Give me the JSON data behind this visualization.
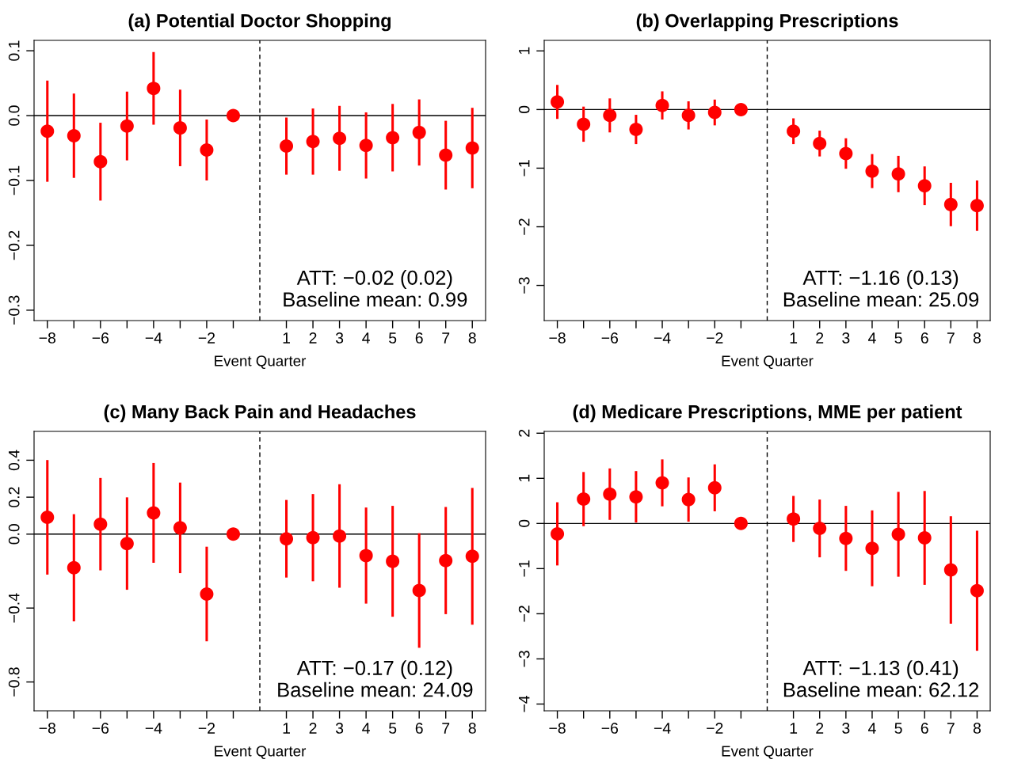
{
  "chart_data": [
    {
      "type": "scatter",
      "title": "(a) Potential Doctor Shopping",
      "xlabel": "Event Quarter",
      "x": [
        -8,
        -7,
        -6,
        -5,
        -4,
        -3,
        -2,
        -1,
        1,
        2,
        3,
        4,
        5,
        6,
        7,
        8
      ],
      "xlim": [
        -8.5,
        8.5
      ],
      "xticks": [
        {
          "value": -8,
          "label": "−8"
        },
        {
          "value": -7,
          "label": null
        },
        {
          "value": -6,
          "label": "−6"
        },
        {
          "value": -5,
          "label": null
        },
        {
          "value": -4,
          "label": "−4"
        },
        {
          "value": -3,
          "label": null
        },
        {
          "value": -2,
          "label": "−2"
        },
        {
          "value": -1,
          "label": null
        },
        1,
        2,
        3,
        4,
        5,
        6,
        7,
        8
      ],
      "series": [
        {
          "color": "#ff0000",
          "values": [
            -0.024,
            -0.031,
            -0.071,
            -0.016,
            0.042,
            -0.019,
            -0.053,
            0,
            -0.047,
            -0.04,
            -0.035,
            -0.046,
            -0.034,
            -0.026,
            -0.061,
            -0.05
          ],
          "errors": [
            0.078,
            0.065,
            0.06,
            0.053,
            0.056,
            0.059,
            0.047,
            null,
            0.044,
            0.051,
            0.05,
            0.051,
            0.052,
            0.051,
            0.053,
            0.062
          ]
        }
      ],
      "ylim": [
        -0.316,
        0.116
      ],
      "yticks": [
        {
          "value": -0.3,
          "label": "−0.3"
        },
        {
          "value": -0.2,
          "label": "−0.2"
        },
        {
          "value": -0.1,
          "label": "−0.1"
        },
        {
          "value": 0,
          "label": "0.0"
        },
        {
          "value": 0.1,
          "label": "0.1"
        }
      ],
      "ref_lines": [
        {
          "axis": "y",
          "value": 0,
          "color": "#000000",
          "line_style": "solid"
        },
        {
          "axis": "x",
          "value": 0,
          "color": "#000000",
          "line_style": "dashed"
        }
      ],
      "annotations": [
        "ATT: −0.02 (0.02)",
        "Baseline mean: 0.99"
      ],
      "marker": "circle",
      "grid": false,
      "legend": false
    },
    {
      "type": "scatter",
      "title": "(b) Overlapping Prescriptions",
      "xlabel": "Event Quarter",
      "x": [
        -8,
        -7,
        -6,
        -5,
        -4,
        -3,
        -2,
        -1,
        1,
        2,
        3,
        4,
        5,
        6,
        7,
        8
      ],
      "xlim": [
        -8.5,
        8.5
      ],
      "xticks": [
        {
          "value": -8,
          "label": "−8"
        },
        {
          "value": -7,
          "label": null
        },
        {
          "value": -6,
          "label": "−6"
        },
        {
          "value": -5,
          "label": null
        },
        {
          "value": -4,
          "label": "−4"
        },
        {
          "value": -3,
          "label": null
        },
        {
          "value": -2,
          "label": "−2"
        },
        {
          "value": -1,
          "label": null
        },
        1,
        2,
        3,
        4,
        5,
        6,
        7,
        8
      ],
      "series": [
        {
          "color": "#ff0000",
          "values": [
            0.13,
            -0.25,
            -0.1,
            -0.34,
            0.07,
            -0.1,
            -0.05,
            0,
            -0.37,
            -0.58,
            -0.75,
            -1.05,
            -1.1,
            -1.3,
            -1.62,
            -1.64
          ],
          "errors": [
            0.29,
            0.3,
            0.29,
            0.25,
            0.24,
            0.24,
            0.22,
            null,
            0.22,
            0.22,
            0.26,
            0.29,
            0.31,
            0.33,
            0.37,
            0.43
          ]
        }
      ],
      "ylim": [
        -3.6,
        1.18
      ],
      "yticks": [
        {
          "value": -3,
          "label": "−3"
        },
        {
          "value": -2,
          "label": "−2"
        },
        {
          "value": -1,
          "label": "−1"
        },
        {
          "value": 0,
          "label": "0"
        },
        {
          "value": 1,
          "label": "1"
        }
      ],
      "ref_lines": [
        {
          "axis": "y",
          "value": 0,
          "color": "#000000",
          "line_style": "solid"
        },
        {
          "axis": "x",
          "value": 0,
          "color": "#000000",
          "line_style": "dashed"
        }
      ],
      "annotations": [
        "ATT: −1.16 (0.13)",
        "Baseline mean: 25.09"
      ],
      "marker": "circle",
      "grid": false,
      "legend": false
    },
    {
      "type": "scatter",
      "title": "(c) Many Back Pain and Headaches",
      "xlabel": "Event Quarter",
      "x": [
        -8,
        -7,
        -6,
        -5,
        -4,
        -3,
        -2,
        -1,
        1,
        2,
        3,
        4,
        5,
        6,
        7,
        8
      ],
      "xlim": [
        -8.5,
        8.5
      ],
      "xticks": [
        {
          "value": -8,
          "label": "−8"
        },
        {
          "value": -7,
          "label": null
        },
        {
          "value": -6,
          "label": "−6"
        },
        {
          "value": -5,
          "label": null
        },
        {
          "value": -4,
          "label": "−4"
        },
        {
          "value": -3,
          "label": null
        },
        {
          "value": -2,
          "label": "−2"
        },
        {
          "value": -1,
          "label": null
        },
        1,
        2,
        3,
        4,
        5,
        6,
        7,
        8
      ],
      "series": [
        {
          "color": "#ff0000",
          "values": [
            0.091,
            -0.182,
            0.054,
            -0.051,
            0.115,
            0.034,
            -0.324,
            0,
            -0.025,
            -0.019,
            -0.01,
            -0.116,
            -0.147,
            -0.305,
            -0.143,
            -0.12
          ],
          "errors": [
            0.31,
            0.29,
            0.25,
            0.25,
            0.27,
            0.245,
            0.256,
            null,
            0.21,
            0.236,
            0.28,
            0.26,
            0.3,
            0.31,
            0.29,
            0.37
          ]
        }
      ],
      "ylim": [
        -0.956,
        0.556
      ],
      "yticks": [
        {
          "value": -0.8,
          "label": "−0.8"
        },
        {
          "value": -0.4,
          "label": "−0.4"
        },
        {
          "value": 0,
          "label": "0.0"
        },
        {
          "value": 0.2,
          "label": "0.2"
        },
        {
          "value": 0.4,
          "label": "0.4"
        }
      ],
      "ref_lines": [
        {
          "axis": "y",
          "value": 0,
          "color": "#000000",
          "line_style": "solid"
        },
        {
          "axis": "x",
          "value": 0,
          "color": "#000000",
          "line_style": "dashed"
        }
      ],
      "annotations": [
        "ATT: −0.17 (0.12)",
        "Baseline mean: 24.09"
      ],
      "marker": "circle",
      "grid": false,
      "legend": false
    },
    {
      "type": "scatter",
      "title": "(d) Medicare Prescriptions, MME per patient",
      "xlabel": "Event Quarter",
      "x": [
        -8,
        -7,
        -6,
        -5,
        -4,
        -3,
        -2,
        -1,
        1,
        2,
        3,
        4,
        5,
        6,
        7,
        8
      ],
      "xlim": [
        -8.5,
        8.5
      ],
      "xticks": [
        {
          "value": -8,
          "label": "−8"
        },
        {
          "value": -7,
          "label": null
        },
        {
          "value": -6,
          "label": "−6"
        },
        {
          "value": -5,
          "label": null
        },
        {
          "value": -4,
          "label": "−4"
        },
        {
          "value": -3,
          "label": null
        },
        {
          "value": -2,
          "label": "−2"
        },
        {
          "value": -1,
          "label": null
        },
        1,
        2,
        3,
        4,
        5,
        6,
        7,
        8
      ],
      "series": [
        {
          "color": "#ff0000",
          "values": [
            -0.23,
            0.54,
            0.65,
            0.59,
            0.9,
            0.53,
            0.79,
            0,
            0.1,
            -0.11,
            -0.33,
            -0.55,
            -0.24,
            -0.32,
            -1.03,
            -1.49
          ],
          "errors": [
            0.7,
            0.6,
            0.57,
            0.57,
            0.52,
            0.49,
            0.52,
            null,
            0.51,
            0.64,
            0.72,
            0.84,
            0.94,
            1.04,
            1.19,
            1.33
          ]
        }
      ],
      "ylim": [
        -4.15,
        2.04
      ],
      "yticks": [
        {
          "value": -4,
          "label": "−4"
        },
        {
          "value": -3,
          "label": "−3"
        },
        {
          "value": -2,
          "label": "−2"
        },
        {
          "value": -1,
          "label": "−1"
        },
        {
          "value": 0,
          "label": "0"
        },
        {
          "value": 1,
          "label": "1"
        },
        {
          "value": 2,
          "label": "2"
        }
      ],
      "ref_lines": [
        {
          "axis": "y",
          "value": 0,
          "color": "#000000",
          "line_style": "solid"
        },
        {
          "axis": "x",
          "value": 0,
          "color": "#000000",
          "line_style": "dashed"
        }
      ],
      "annotations": [
        "ATT: −1.13 (0.41)",
        "Baseline mean: 62.12"
      ],
      "marker": "circle",
      "grid": false,
      "legend": false
    }
  ]
}
